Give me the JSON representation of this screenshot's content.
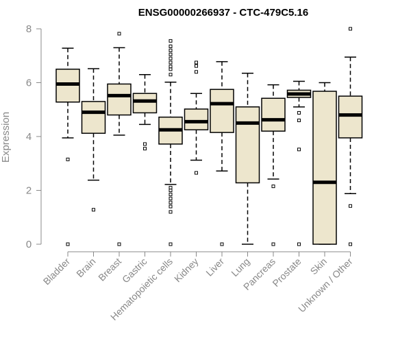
{
  "chart_data": {
    "type": "boxplot",
    "title": "ENSG00000266937 - CTC-479C5.16",
    "xlabel": "",
    "ylabel": "Expression",
    "ylim": [
      0,
      8
    ],
    "yticks": [
      0,
      2,
      4,
      6,
      8
    ],
    "box_fill": "#ede6cd",
    "categories": [
      "Bladder",
      "Brain",
      "Breast",
      "Gastric",
      "Hematopoietic cells",
      "Kidney",
      "Liver",
      "Lung",
      "Pancreas",
      "Prostate",
      "Skin",
      "Unknown / Other"
    ],
    "boxes": [
      {
        "name": "Bladder",
        "whisker_low": 3.95,
        "q1": 5.28,
        "median": 5.95,
        "q3": 6.5,
        "whisker_high": 7.28,
        "outliers": [
          0,
          3.15
        ]
      },
      {
        "name": "Brain",
        "whisker_low": 2.38,
        "q1": 4.12,
        "median": 4.9,
        "q3": 5.3,
        "whisker_high": 6.52,
        "outliers": [
          1.28
        ]
      },
      {
        "name": "Breast",
        "whisker_low": 4.05,
        "q1": 4.8,
        "median": 5.52,
        "q3": 5.95,
        "whisker_high": 7.3,
        "outliers": [
          0,
          7.82
        ]
      },
      {
        "name": "Gastric",
        "whisker_low": 4.45,
        "q1": 4.88,
        "median": 5.32,
        "q3": 5.6,
        "whisker_high": 6.3,
        "outliers": [
          3.55,
          3.72
        ]
      },
      {
        "name": "Hematopoietic cells",
        "whisker_low": 2.22,
        "q1": 3.72,
        "median": 4.25,
        "q3": 4.72,
        "whisker_high": 6.02,
        "outliers": [
          0,
          1.2,
          1.4,
          1.55,
          1.7,
          1.85,
          2.0,
          2.1,
          6.3,
          6.5,
          6.6,
          6.75,
          6.9,
          7.05,
          7.2,
          7.35,
          7.55
        ]
      },
      {
        "name": "Kidney",
        "whisker_low": 3.12,
        "q1": 4.25,
        "median": 4.55,
        "q3": 5.02,
        "whisker_high": 5.6,
        "outliers": [
          2.65,
          6.4,
          6.62,
          6.75
        ]
      },
      {
        "name": "Liver",
        "whisker_low": 2.72,
        "q1": 4.15,
        "median": 5.22,
        "q3": 5.75,
        "whisker_high": 6.78,
        "outliers": [
          0
        ]
      },
      {
        "name": "Lung",
        "whisker_low": 0.0,
        "q1": 2.28,
        "median": 4.5,
        "q3": 5.1,
        "whisker_high": 6.35,
        "outliers": []
      },
      {
        "name": "Pancreas",
        "whisker_low": 2.42,
        "q1": 4.2,
        "median": 4.62,
        "q3": 5.42,
        "whisker_high": 5.92,
        "outliers": [
          0,
          2.15
        ]
      },
      {
        "name": "Prostate",
        "whisker_low": 5.1,
        "q1": 5.45,
        "median": 5.58,
        "q3": 5.72,
        "whisker_high": 6.05,
        "outliers": [
          0,
          3.52,
          4.6,
          4.88
        ]
      },
      {
        "name": "Skin",
        "whisker_low": 0.0,
        "q1": 0.0,
        "median": 2.3,
        "q3": 5.68,
        "whisker_high": 6.0,
        "outliers": []
      },
      {
        "name": "Unknown / Other",
        "whisker_low": 1.88,
        "q1": 3.95,
        "median": 4.8,
        "q3": 5.5,
        "whisker_high": 6.95,
        "outliers": [
          0,
          1.42,
          8.0
        ]
      }
    ]
  }
}
